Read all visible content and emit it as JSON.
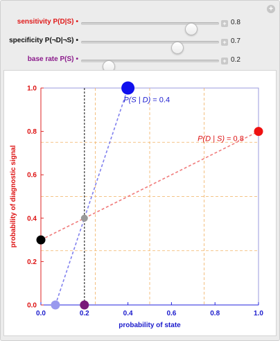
{
  "sliders": [
    {
      "id": "sensitivity",
      "label": "sensitivity P(D|S)",
      "color": "#e01919",
      "value": 0.8,
      "value_text": "0.8"
    },
    {
      "id": "specificity",
      "label": "specificity P(¬D|¬S)",
      "color": "#111111",
      "value": 0.7,
      "value_text": "0.7"
    },
    {
      "id": "base-rate",
      "label": "base rate P(S)",
      "color": "#8b1a8b",
      "value": 0.2,
      "value_text": "0.2"
    }
  ],
  "chart_data": {
    "type": "scatter",
    "xlabel": "probability of state",
    "ylabel": "probability of diagnostic signal",
    "xlim": [
      0,
      1
    ],
    "ylim": [
      0,
      1
    ],
    "x_ticks": [
      0.0,
      0.2,
      0.4,
      0.6,
      0.8,
      1.0
    ],
    "x_tick_labels": [
      "0.0",
      "0.2",
      "0.4",
      "0.6",
      "0.8",
      "1.0"
    ],
    "y_ticks": [
      0.0,
      0.2,
      0.4,
      0.6,
      0.8,
      1.0
    ],
    "y_tick_labels": [
      "0.0",
      "0.2",
      "0.4",
      "0.6",
      "0.8",
      "1.0"
    ],
    "grid_x": [
      0.25,
      0.5,
      0.75
    ],
    "grid_y": [
      0.25,
      0.5,
      0.75
    ],
    "base_rate_line_x": 0.2,
    "lines": [
      {
        "name": "P(D | S)",
        "color": "#f07a7a",
        "from": [
          0,
          0.3
        ],
        "to": [
          1,
          0.8
        ]
      },
      {
        "name": "P(S | D)",
        "color": "#8080ee",
        "from": [
          0.0667,
          0
        ],
        "to": [
          0.4,
          1
        ]
      }
    ],
    "points": [
      {
        "id": "black",
        "x": 0,
        "y": 0.3,
        "color": "#000000",
        "size": "medium"
      },
      {
        "id": "red",
        "x": 1,
        "y": 0.8,
        "color": "#ee1111",
        "size": "medium"
      },
      {
        "id": "gray",
        "x": 0.2,
        "y": 0.4,
        "color": "#999999",
        "size": "small"
      },
      {
        "id": "light-blue",
        "x": 0.0667,
        "y": 0,
        "color": "#9999ee",
        "size": "medium"
      },
      {
        "id": "purple",
        "x": 0.2,
        "y": 0,
        "color": "#7a1a7a",
        "size": "medium"
      },
      {
        "id": "blue",
        "x": 0.4,
        "y": 1,
        "color": "#1010ee",
        "size": "large"
      }
    ],
    "annotations": [
      {
        "id": "p-s-given-d",
        "prefix": "P(S | D)",
        "value_text": " = 0.4",
        "color": "#2020d0",
        "at": [
          0.38,
          0.935
        ]
      },
      {
        "id": "p-d-given-s",
        "prefix": "P(D | S)",
        "value_text": " = 0.8",
        "color": "#dd1111",
        "at": [
          0.72,
          0.755
        ]
      }
    ]
  }
}
